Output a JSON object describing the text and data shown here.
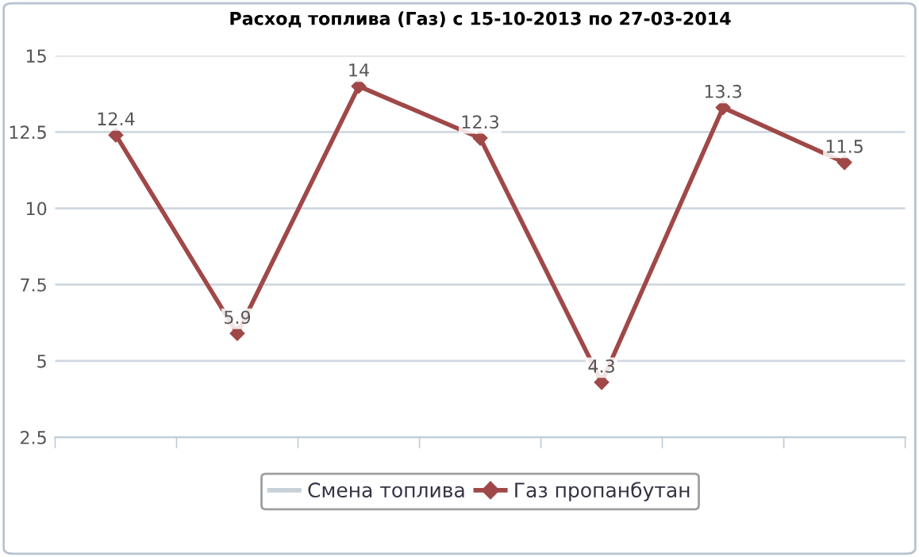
{
  "chart_data": {
    "type": "line",
    "title": "Расход топлива (Газ) с 15-10-2013 по 27-03-2014",
    "categories": [
      null,
      null,
      null,
      null,
      null,
      null,
      null
    ],
    "series": [
      {
        "name": "Смена топлива",
        "color": "#c8d0d8",
        "values": [
          null,
          null,
          null,
          null,
          null,
          null,
          null
        ],
        "marker": "none"
      },
      {
        "name": "Газ пропанбутан",
        "color": "#a04848",
        "values": [
          12.4,
          5.9,
          14,
          12.3,
          4.3,
          13.3,
          11.5
        ],
        "marker": "diamond"
      }
    ],
    "ylim": [
      2.5,
      15
    ],
    "yticks": [
      2.5,
      5,
      7.5,
      10,
      12.5,
      15
    ],
    "grid": "y",
    "legend": "bottom",
    "data_labels": true,
    "line_style": "solid"
  }
}
